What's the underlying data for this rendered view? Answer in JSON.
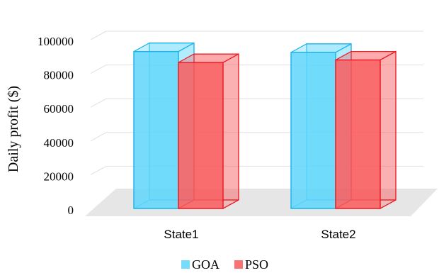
{
  "chart_data": {
    "type": "bar",
    "style": "3d-clustered",
    "categories": [
      "State1",
      "State2"
    ],
    "series": [
      {
        "name": "GOA",
        "values": [
          93000,
          92500
        ]
      },
      {
        "name": "PSO",
        "values": [
          86500,
          88000
        ]
      }
    ],
    "xlabel": "",
    "ylabel": "Daily profit ($)",
    "ylim": [
      0,
      100000
    ],
    "yticks": [
      0,
      20000,
      40000,
      60000,
      80000,
      100000
    ],
    "ytick_labels": [
      "0",
      "20000",
      "40000",
      "60000",
      "80000",
      "100000"
    ],
    "grid": true,
    "legend_position": "bottom-center",
    "colors": {
      "GOA": {
        "fill": "#5fd6fb",
        "edge": "#1ab2ea"
      },
      "PSO": {
        "fill": "#f95a5c",
        "edge": "#ee1a22"
      },
      "floor": "#e6e6e6",
      "grid": "#e0e0e0"
    }
  }
}
